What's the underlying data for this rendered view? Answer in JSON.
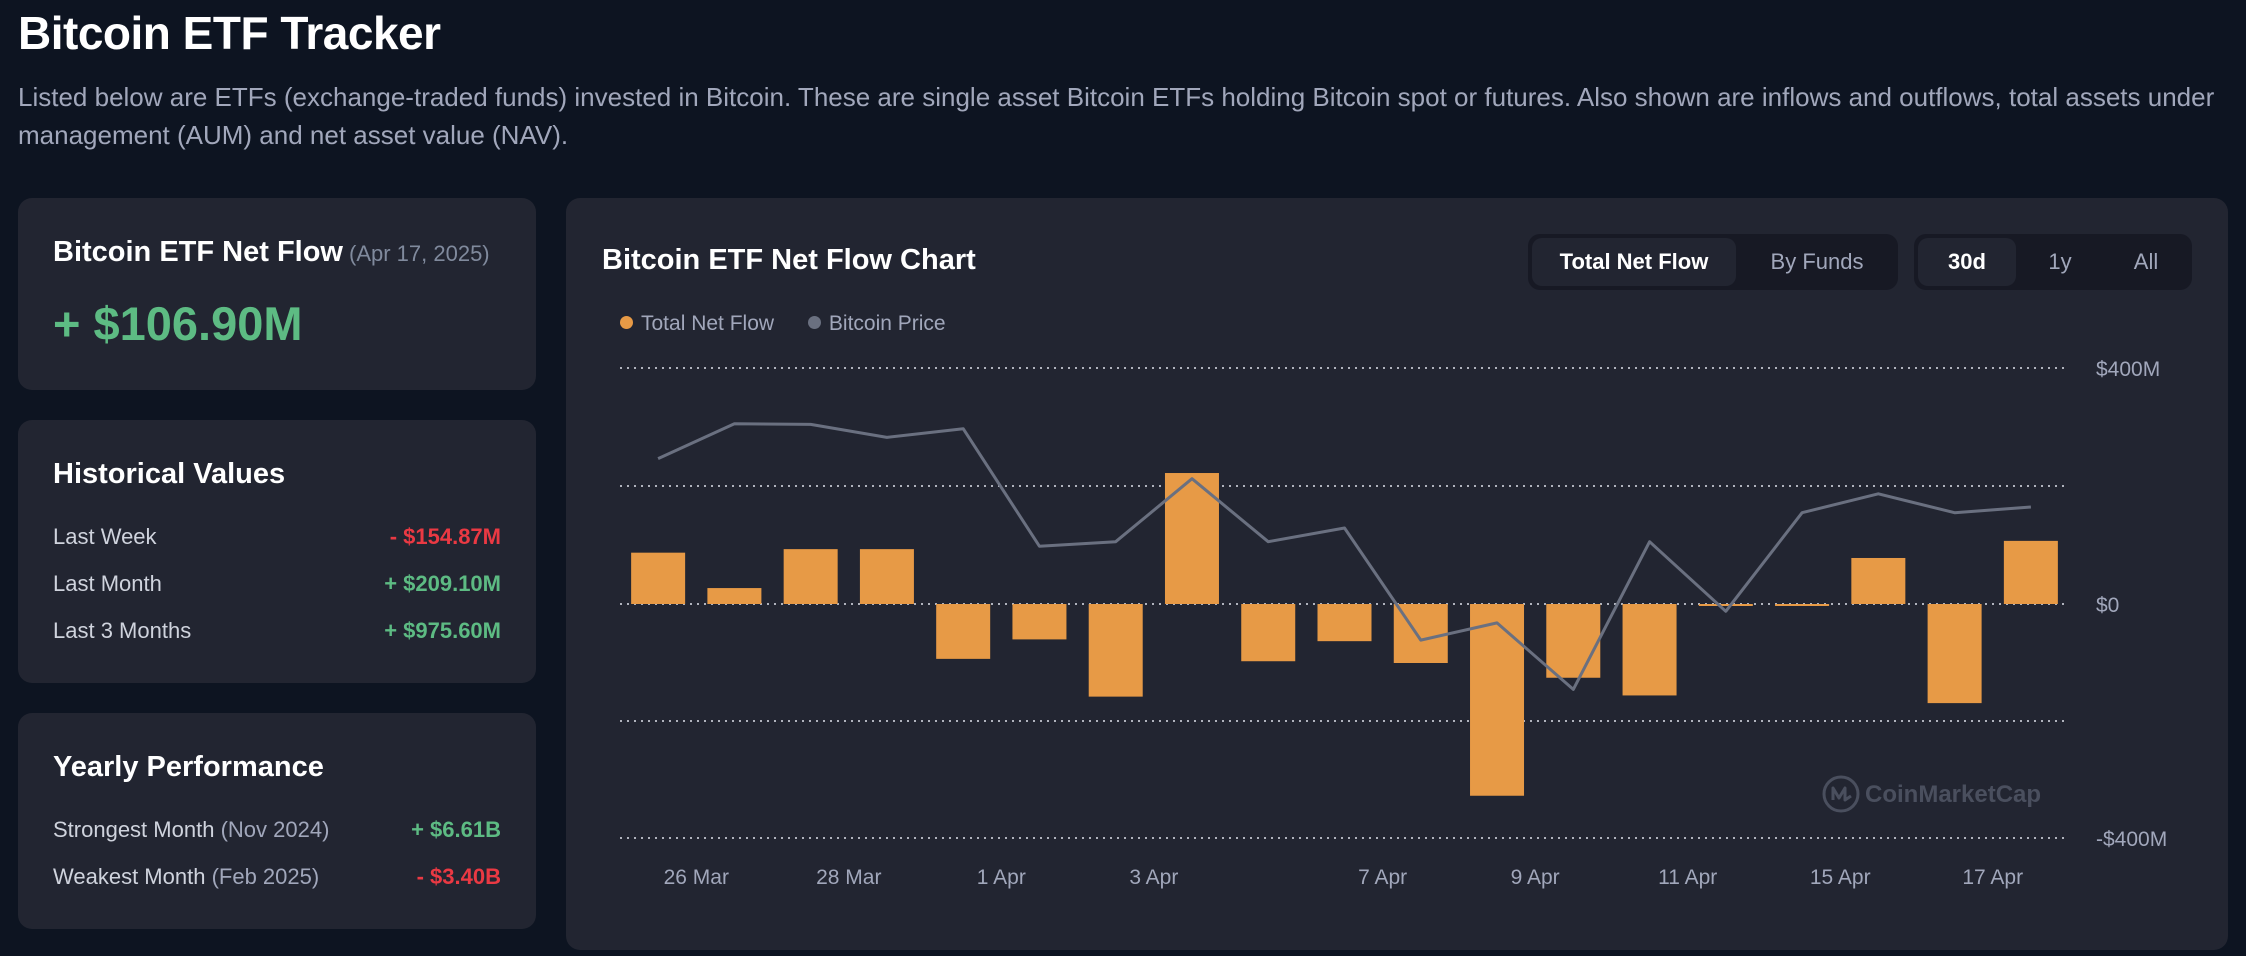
{
  "page": {
    "title": "Bitcoin ETF Tracker",
    "description": "Listed below are ETFs (exchange-traded funds) invested in Bitcoin. These are single asset Bitcoin ETFs holding Bitcoin spot or futures. Also shown are inflows and outflows, total assets under management (AUM) and net asset value (NAV)."
  },
  "net_flow": {
    "title": "Bitcoin ETF Net Flow",
    "date": "(Apr 17, 2025)",
    "value": "+ $106.90M"
  },
  "historical": {
    "title": "Historical Values",
    "rows": [
      {
        "label": "Last Week",
        "value": "- $154.87M"
      },
      {
        "label": "Last Month",
        "value": "+ $209.10M"
      },
      {
        "label": "Last 3 Months",
        "value": "+ $975.60M"
      }
    ]
  },
  "yearly": {
    "title": "Yearly Performance",
    "rows": [
      {
        "label": "Strongest Month",
        "sub": "(Nov 2024)",
        "value": "+ $6.61B"
      },
      {
        "label": "Weakest Month",
        "sub": "(Feb 2025)",
        "value": "- $3.40B"
      }
    ]
  },
  "chart_card": {
    "title": "Bitcoin ETF Net Flow Chart",
    "view_toggle": [
      "Total Net Flow",
      "By Funds"
    ],
    "view_active": "Total Net Flow",
    "range_toggle": [
      "30d",
      "1y",
      "All"
    ],
    "range_active": "30d",
    "watermark": "CoinMarketCap"
  },
  "colors": {
    "background": "#0d1421",
    "card": "#222531",
    "bar": "#e79a46",
    "price_line": "#6a7080",
    "positive": "#5dbb83",
    "negative": "#ea3943"
  },
  "chart_data": {
    "type": "bar",
    "title": "Bitcoin ETF Net Flow Chart",
    "legend": [
      "Total Net Flow",
      "Bitcoin Price"
    ],
    "legend_position": "top-left",
    "y_ticks": [
      "$400M",
      "$0",
      "-$400M"
    ],
    "ylim": [
      -400,
      400
    ],
    "y_unit": "M USD",
    "grid": true,
    "x_ticks": [
      {
        "after_bar": 1,
        "label": "26 Mar"
      },
      {
        "after_bar": 3,
        "label": "28 Mar"
      },
      {
        "after_bar": 5,
        "label": "1 Apr"
      },
      {
        "after_bar": 7,
        "label": "3 Apr"
      },
      {
        "after_bar": 10,
        "label": "7 Apr"
      },
      {
        "after_bar": 12,
        "label": "9 Apr"
      },
      {
        "after_bar": 14,
        "label": "11 Apr"
      },
      {
        "after_bar": 16,
        "label": "15 Apr"
      },
      {
        "after_bar": 18,
        "label": "17 Apr"
      }
    ],
    "series": [
      {
        "name": "Total Net Flow",
        "values": [
          87,
          27,
          93,
          93,
          -93,
          -60,
          -157,
          222,
          -97,
          -63,
          -100,
          -325,
          -125,
          -155,
          -3,
          0,
          78,
          -168,
          107
        ]
      },
      {
        "name": "Bitcoin Price",
        "relative_level": [
          0.616,
          0.764,
          0.761,
          0.706,
          0.743,
          0.245,
          0.264,
          0.531,
          0.264,
          0.322,
          -0.153,
          -0.08,
          -0.362,
          0.264,
          -0.031,
          0.387,
          0.467,
          0.387,
          0.411
        ]
      }
    ]
  }
}
